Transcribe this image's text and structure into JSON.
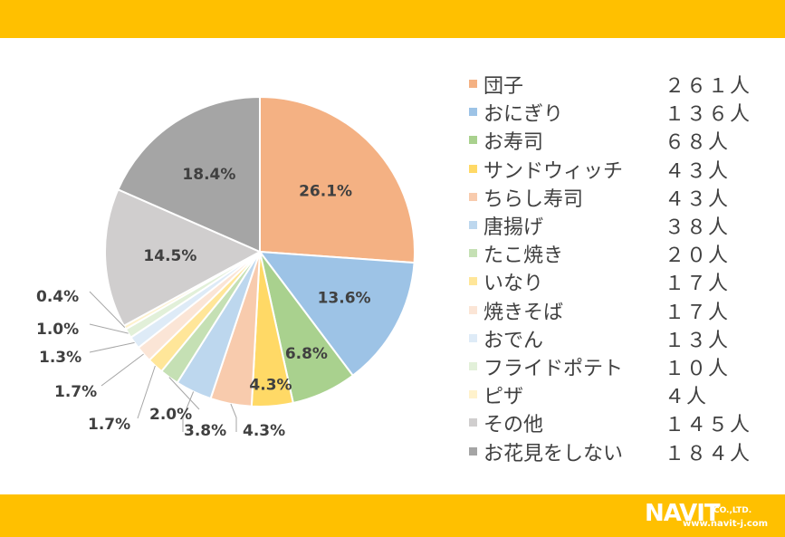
{
  "chart_data": {
    "type": "pie",
    "slices": [
      {
        "label": "団子",
        "count": "２６１人",
        "percent": 26.1,
        "percent_label": "26.1%",
        "color": "#F4B183"
      },
      {
        "label": "おにぎり",
        "count": "１３６人",
        "percent": 13.6,
        "percent_label": "13.6%",
        "color": "#9DC3E6"
      },
      {
        "label": "お寿司",
        "count": "６８人",
        "percent": 6.8,
        "percent_label": "6.8%",
        "color": "#A9D18E"
      },
      {
        "label": "サンドウィッチ",
        "count": "４３人",
        "percent": 4.3,
        "percent_label": "4.3%",
        "color": "#FFD966"
      },
      {
        "label": "ちらし寿司",
        "count": "４３人",
        "percent": 4.3,
        "percent_label": "4.3%",
        "color": "#F8CBAD"
      },
      {
        "label": "唐揚げ",
        "count": "３８人",
        "percent": 3.8,
        "percent_label": "3.8%",
        "color": "#BDD7EE"
      },
      {
        "label": "たこ焼き",
        "count": "２０人",
        "percent": 2.0,
        "percent_label": "2.0%",
        "color": "#C5E0B4"
      },
      {
        "label": "いなり",
        "count": "１７人",
        "percent": 1.7,
        "percent_label": "1.7%",
        "color": "#FFE699"
      },
      {
        "label": "焼きそば",
        "count": "１７人",
        "percent": 1.7,
        "percent_label": "1.7%",
        "color": "#FBE5D6"
      },
      {
        "label": "おでん",
        "count": "１３人",
        "percent": 1.3,
        "percent_label": "1.3%",
        "color": "#DEEBF7"
      },
      {
        "label": "フライドポテト",
        "count": "１０人",
        "percent": 1.0,
        "percent_label": "1.0%",
        "color": "#E2F0D9"
      },
      {
        "label": "ピザ",
        "count": "４人",
        "percent": 0.4,
        "percent_label": "0.4%",
        "color": "#FFF2CC"
      },
      {
        "label": "その他",
        "count": "１４５人",
        "percent": 14.5,
        "percent_label": "14.5%",
        "color": "#D0CECE"
      },
      {
        "label": "お花見をしない",
        "count": "１８４人",
        "percent": 18.4,
        "percent_label": "18.4%",
        "color": "#A5A5A5"
      }
    ],
    "legend_position": "right"
  },
  "brand": {
    "logo_text": "NAVIT",
    "logo_suffix": "CO.,LTD.",
    "url": "www.navit-j.com",
    "accent": "#FFC000"
  }
}
